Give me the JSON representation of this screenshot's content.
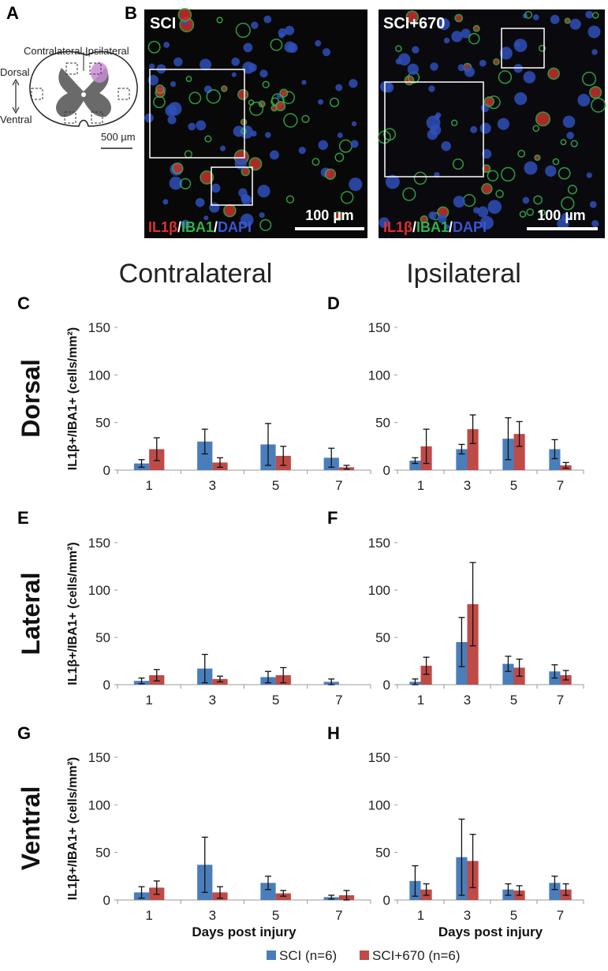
{
  "panel_a": {
    "label": "A",
    "contralateral": "Contralateral",
    "ipsilateral": "Ipsilateral",
    "dorsal": "Dorsal",
    "ventral": "Ventral",
    "scale": "500 µm"
  },
  "panel_b": {
    "label": "B",
    "images": [
      {
        "title": "SCI",
        "stain": [
          "IL1β",
          "/",
          "IBA1",
          "/",
          "DAPI"
        ],
        "scale": "100 µm"
      },
      {
        "title": "SCI+670",
        "stain": [
          "IL1β",
          "/",
          "IBA1",
          "/",
          "DAPI"
        ],
        "scale": "100 µm"
      }
    ]
  },
  "columns": [
    "Contralateral",
    "Ipsilateral"
  ],
  "rows": [
    "Dorsal",
    "Lateral",
    "Ventral"
  ],
  "chart_data": [
    {
      "type": "bar",
      "panel": "C",
      "ylabel": "IL1β+/IBA1+ (cells/mm²)",
      "categories": [
        "1",
        "3",
        "5",
        "7"
      ],
      "ylim": [
        0,
        150
      ],
      "yticks": [
        0,
        50,
        100,
        150
      ],
      "series": [
        {
          "name": "SCI (n=6)",
          "color": "#4a7ebb",
          "values": [
            7,
            30,
            27,
            13
          ],
          "errors": [
            4,
            13,
            22,
            10
          ]
        },
        {
          "name": "SCI+670 (n=6)",
          "color": "#be4b48",
          "values": [
            22,
            8,
            15,
            3
          ],
          "errors": [
            12,
            5,
            10,
            2
          ]
        }
      ]
    },
    {
      "type": "bar",
      "panel": "D",
      "categories": [
        "1",
        "3",
        "5",
        "7"
      ],
      "ylim": [
        0,
        150
      ],
      "yticks": [
        0,
        50,
        100,
        150
      ],
      "series": [
        {
          "name": "SCI (n=6)",
          "color": "#4a7ebb",
          "values": [
            10,
            22,
            33,
            22
          ],
          "errors": [
            3,
            5,
            22,
            10
          ]
        },
        {
          "name": "SCI+670 (n=6)",
          "color": "#be4b48",
          "values": [
            25,
            43,
            38,
            5
          ],
          "errors": [
            18,
            15,
            13,
            3
          ]
        }
      ]
    },
    {
      "type": "bar",
      "panel": "E",
      "ylabel": "IL1β+/IBA1+ (cells/mm²)",
      "categories": [
        "1",
        "3",
        "5",
        "7"
      ],
      "ylim": [
        0,
        150
      ],
      "yticks": [
        0,
        50,
        100,
        150
      ],
      "series": [
        {
          "name": "SCI (n=6)",
          "color": "#4a7ebb",
          "values": [
            4,
            17,
            8,
            3
          ],
          "errors": [
            3,
            15,
            6,
            3
          ]
        },
        {
          "name": "SCI+670 (n=6)",
          "color": "#be4b48",
          "values": [
            10,
            6,
            10,
            0
          ],
          "errors": [
            6,
            3,
            8,
            0
          ]
        }
      ]
    },
    {
      "type": "bar",
      "panel": "F",
      "categories": [
        "1",
        "3",
        "5",
        "7"
      ],
      "ylim": [
        0,
        150
      ],
      "yticks": [
        0,
        50,
        100,
        150
      ],
      "series": [
        {
          "name": "SCI (n=6)",
          "color": "#4a7ebb",
          "values": [
            3,
            45,
            22,
            14
          ],
          "errors": [
            3,
            26,
            8,
            7
          ]
        },
        {
          "name": "SCI+670 (n=6)",
          "color": "#be4b48",
          "values": [
            20,
            85,
            18,
            10
          ],
          "errors": [
            9,
            44,
            9,
            5
          ]
        }
      ]
    },
    {
      "type": "bar",
      "panel": "G",
      "ylabel": "IL1β+/IBA1+ (cells/mm²)",
      "xlabel": "Days post injury",
      "categories": [
        "1",
        "3",
        "5",
        "7"
      ],
      "ylim": [
        0,
        150
      ],
      "yticks": [
        0,
        50,
        100,
        150
      ],
      "series": [
        {
          "name": "SCI (n=6)",
          "color": "#4a7ebb",
          "values": [
            8,
            37,
            18,
            3
          ],
          "errors": [
            6,
            29,
            7,
            2
          ]
        },
        {
          "name": "SCI+670 (n=6)",
          "color": "#be4b48",
          "values": [
            13,
            8,
            7,
            5
          ],
          "errors": [
            7,
            6,
            3,
            5
          ]
        }
      ]
    },
    {
      "type": "bar",
      "panel": "H",
      "xlabel": "Days post injury",
      "categories": [
        "1",
        "3",
        "5",
        "7"
      ],
      "ylim": [
        0,
        150
      ],
      "yticks": [
        0,
        50,
        100,
        150
      ],
      "series": [
        {
          "name": "SCI (n=6)",
          "color": "#4a7ebb",
          "values": [
            20,
            45,
            11,
            18
          ],
          "errors": [
            16,
            40,
            6,
            7
          ]
        },
        {
          "name": "SCI+670 (n=6)",
          "color": "#be4b48",
          "values": [
            11,
            41,
            10,
            11
          ],
          "errors": [
            6,
            28,
            5,
            6
          ]
        }
      ]
    }
  ]
}
